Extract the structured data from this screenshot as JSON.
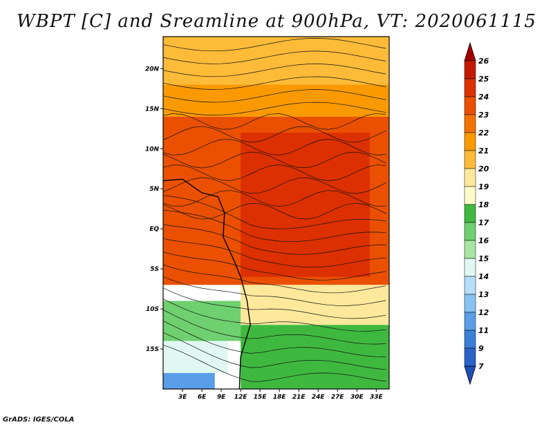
{
  "chart_data": {
    "type": "heatmap",
    "title": "WBPT [C] and Sreamline at 900hPa, VT: 2020061115",
    "variable": "WBPT [C]",
    "overlay": "Sreamline",
    "level": "900hPa",
    "valid_time": "2020061115",
    "x_range": [
      0,
      35
    ],
    "y_range": [
      -20,
      24
    ],
    "x_ticks": [
      {
        "value": 3,
        "label": "3E"
      },
      {
        "value": 6,
        "label": "6E"
      },
      {
        "value": 9,
        "label": "9E"
      },
      {
        "value": 12,
        "label": "12E"
      },
      {
        "value": 15,
        "label": "15E"
      },
      {
        "value": 18,
        "label": "18E"
      },
      {
        "value": 21,
        "label": "21E"
      },
      {
        "value": 24,
        "label": "24E"
      },
      {
        "value": 27,
        "label": "27E"
      },
      {
        "value": 30,
        "label": "30E"
      },
      {
        "value": 33,
        "label": "33E"
      }
    ],
    "y_ticks": [
      {
        "value": 20,
        "label": "20N"
      },
      {
        "value": 15,
        "label": "15N"
      },
      {
        "value": 10,
        "label": "10N"
      },
      {
        "value": 5,
        "label": "5N"
      },
      {
        "value": 0,
        "label": "EQ"
      },
      {
        "value": -5,
        "label": "5S"
      },
      {
        "value": -10,
        "label": "10S"
      },
      {
        "value": -15,
        "label": "15S"
      }
    ],
    "colorbar": {
      "labels": [
        "26",
        "25",
        "24",
        "23",
        "22",
        "21",
        "20",
        "19",
        "18",
        "17",
        "16",
        "15",
        "14",
        "13",
        "12",
        "11",
        "9",
        "7"
      ],
      "colors": [
        "#a50000",
        "#c41b00",
        "#dc3000",
        "#ea5000",
        "#f47200",
        "#fa9a00",
        "#fdbb38",
        "#fde89b",
        "#fffbc8",
        "#3fb83f",
        "#6fd06f",
        "#a7e6a2",
        "#e1f8f2",
        "#b4def9",
        "#87c4f2",
        "#5a9ee8",
        "#3a7ed8",
        "#2a62c8",
        "#1e4eb8"
      ]
    },
    "regions": [
      {
        "value": 20.3,
        "lon": [
          0,
          35
        ],
        "lat": [
          18,
          24
        ]
      },
      {
        "value": 21.5,
        "lon": [
          0,
          35
        ],
        "lat": [
          14,
          18
        ]
      },
      {
        "value": 23.5,
        "lon": [
          0,
          35
        ],
        "lat": [
          -7,
          14
        ]
      },
      {
        "value": 24.5,
        "lon": [
          12,
          32
        ],
        "lat": [
          -6,
          12
        ]
      },
      {
        "value": 19,
        "lon": [
          12,
          35
        ],
        "lat": [
          -12,
          -7
        ]
      },
      {
        "value": 17,
        "lon": [
          12,
          35
        ],
        "lat": [
          -20,
          -12
        ]
      },
      {
        "value": 16,
        "lon": [
          0,
          12
        ],
        "lat": [
          -14,
          -9
        ]
      },
      {
        "value": 14,
        "lon": [
          0,
          10
        ],
        "lat": [
          -18,
          -14
        ]
      },
      {
        "value": 11,
        "lon": [
          0,
          8
        ],
        "lat": [
          -20,
          -18
        ]
      }
    ]
  },
  "footer": "GrADS: IGES/COLA"
}
